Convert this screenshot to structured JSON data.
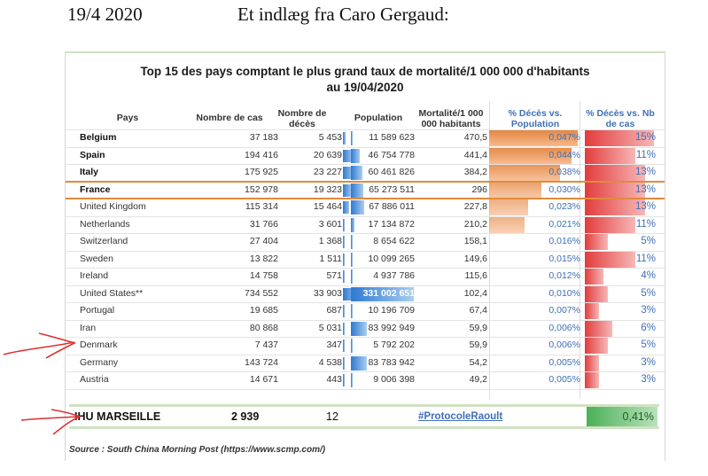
{
  "header": {
    "date": "19/4 2020",
    "title": "Et indlæg fra Caro Gergaud:"
  },
  "table": {
    "title_line1": "Top 15 des pays comptant le plus grand taux de mortalité/1 000 000 d'habitants",
    "title_line2": "au 19/04/2020",
    "columns": {
      "country": "Pays",
      "cases": "Nombre de cas",
      "deaths": [
        "Nombre de",
        "décès"
      ],
      "population": "Population",
      "mortality": [
        "Mortalité/1 000",
        "000 habitants"
      ],
      "pct_pop": [
        "% Décès vs.",
        "Population"
      ],
      "pct_cases": [
        "% Décès vs. Nb",
        "de cas"
      ]
    },
    "rows": [
      {
        "country": "Belgium",
        "cases": "37 183",
        "deaths": "5 453",
        "population": "11 589 623",
        "mortality": "470,5",
        "pct_pop": "0,047%",
        "pct_cases": "15%",
        "bold": true,
        "deaths_n": 5453,
        "pop_n": 11589623,
        "mort_n": 470.5,
        "cas_n": 15
      },
      {
        "country": "Spain",
        "cases": "194 416",
        "deaths": "20 639",
        "population": "46 754 778",
        "mortality": "441,4",
        "pct_pop": "0,044%",
        "pct_cases": "11%",
        "bold": true,
        "deaths_n": 20639,
        "pop_n": 46754778,
        "mort_n": 441.4,
        "cas_n": 11
      },
      {
        "country": "Italy",
        "cases": "175 925",
        "deaths": "23 227",
        "population": "60 461 826",
        "mortality": "384,2",
        "pct_pop": "0,038%",
        "pct_cases": "13%",
        "bold": true,
        "deaths_n": 23227,
        "pop_n": 60461826,
        "mort_n": 384.2,
        "cas_n": 13
      },
      {
        "country": "France",
        "cases": "152 978",
        "deaths": "19 323",
        "population": "65 273 511",
        "mortality": "296",
        "pct_pop": "0,030%",
        "pct_cases": "13%",
        "bold": true,
        "deaths_n": 19323,
        "pop_n": 65273511,
        "mort_n": 296,
        "cas_n": 13
      },
      {
        "country": "United Kingdom",
        "cases": "115 314",
        "deaths": "15 464",
        "population": "67 886 011",
        "mortality": "227,8",
        "pct_pop": "0,023%",
        "pct_cases": "13%",
        "bold": false,
        "deaths_n": 15464,
        "pop_n": 67886011,
        "mort_n": 227.8,
        "cas_n": 13
      },
      {
        "country": "Netherlands",
        "cases": "31 766",
        "deaths": "3 601",
        "population": "17 134 872",
        "mortality": "210,2",
        "pct_pop": "0,021%",
        "pct_cases": "11%",
        "bold": false,
        "deaths_n": 3601,
        "pop_n": 17134872,
        "mort_n": 210.2,
        "cas_n": 11
      },
      {
        "country": "Switzerland",
        "cases": "27 404",
        "deaths": "1 368",
        "population": "8 654 622",
        "mortality": "158,1",
        "pct_pop": "0,016%",
        "pct_cases": "5%",
        "bold": false,
        "deaths_n": 1368,
        "pop_n": 8654622,
        "mort_n": 158.1,
        "cas_n": 5
      },
      {
        "country": "Sweden",
        "cases": "13 822",
        "deaths": "1 511",
        "population": "10 099 265",
        "mortality": "149,6",
        "pct_pop": "0,015%",
        "pct_cases": "11%",
        "bold": false,
        "deaths_n": 1511,
        "pop_n": 10099265,
        "mort_n": 149.6,
        "cas_n": 11
      },
      {
        "country": "Ireland",
        "cases": "14 758",
        "deaths": "571",
        "population": "4 937 786",
        "mortality": "115,6",
        "pct_pop": "0,012%",
        "pct_cases": "4%",
        "bold": false,
        "deaths_n": 571,
        "pop_n": 4937786,
        "mort_n": 115.6,
        "cas_n": 4
      },
      {
        "country": "United States**",
        "cases": "734 552",
        "deaths": "33 903",
        "population": "331 002 651",
        "mortality": "102,4",
        "pct_pop": "0,010%",
        "pct_cases": "5%",
        "bold": false,
        "deaths_n": 33903,
        "pop_n": 331002651,
        "mort_n": 102.4,
        "cas_n": 5
      },
      {
        "country": "Portugal",
        "cases": "19 685",
        "deaths": "687",
        "population": "10 196 709",
        "mortality": "67,4",
        "pct_pop": "0,007%",
        "pct_cases": "3%",
        "bold": false,
        "deaths_n": 687,
        "pop_n": 10196709,
        "mort_n": 67.4,
        "cas_n": 3
      },
      {
        "country": "Iran",
        "cases": "80 868",
        "deaths": "5 031",
        "population": "83 992 949",
        "mortality": "59,9",
        "pct_pop": "0,006%",
        "pct_cases": "6%",
        "bold": false,
        "deaths_n": 5031,
        "pop_n": 83992949,
        "mort_n": 59.9,
        "cas_n": 6
      },
      {
        "country": "Denmark",
        "cases": "7 437",
        "deaths": "347",
        "population": "5 792 202",
        "mortality": "59,9",
        "pct_pop": "0,006%",
        "pct_cases": "5%",
        "bold": false,
        "deaths_n": 347,
        "pop_n": 5792202,
        "mort_n": 59.9,
        "cas_n": 5
      },
      {
        "country": "Germany",
        "cases": "143 724",
        "deaths": "4 538",
        "population": "83 783 942",
        "mortality": "54,2",
        "pct_pop": "0,005%",
        "pct_cases": "3%",
        "bold": false,
        "deaths_n": 4538,
        "pop_n": 83783942,
        "mort_n": 54.2,
        "cas_n": 3
      },
      {
        "country": "Austria",
        "cases": "14 671",
        "deaths": "443",
        "population": "9 006 398",
        "mortality": "49,2",
        "pct_pop": "0,005%",
        "pct_cases": "3%",
        "bold": false,
        "deaths_n": 443,
        "pop_n": 9006398,
        "mort_n": 49.2,
        "cas_n": 3
      }
    ],
    "ihu": {
      "name": "IHU MARSEILLE",
      "cases": "2 939",
      "deaths": "12",
      "link": "#ProtocoleRaoult",
      "rate": "0,41%"
    },
    "source": "Source : South China Morning Post (https://www.scmp.com/)"
  },
  "colors": {
    "orange_bar": "#e48743",
    "red_bar": "#e23c3c",
    "blue_bar": "#2f7ad0",
    "green_bar": "#4bb058",
    "blue_text": "#3f6fb5",
    "annotation_red": "#e03030"
  }
}
